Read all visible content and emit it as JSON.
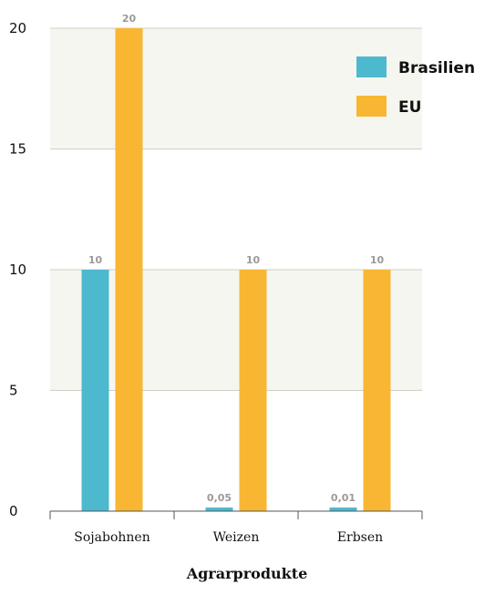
{
  "chart_data": {
    "type": "bar",
    "categories": [
      "Sojabohnen",
      "Weizen",
      "Erbsen"
    ],
    "series": [
      {
        "name": "Brasilien",
        "values": [
          10,
          0.05,
          0.01
        ],
        "labels": [
          "10",
          "0,05",
          "0,01"
        ],
        "color": "#4db9ce"
      },
      {
        "name": "EU",
        "values": [
          20,
          10,
          10
        ],
        "labels": [
          "20",
          "10",
          "10"
        ],
        "color": "#f8b632"
      }
    ],
    "xlabel": "Agrarprodukte",
    "ylabel": "",
    "ylim": [
      0,
      20
    ],
    "yticks": [
      0,
      5,
      10,
      15,
      20
    ],
    "band_color": "#f6f6f1",
    "gridline_color": "#cfcfc4",
    "legend_position": "top-right"
  }
}
